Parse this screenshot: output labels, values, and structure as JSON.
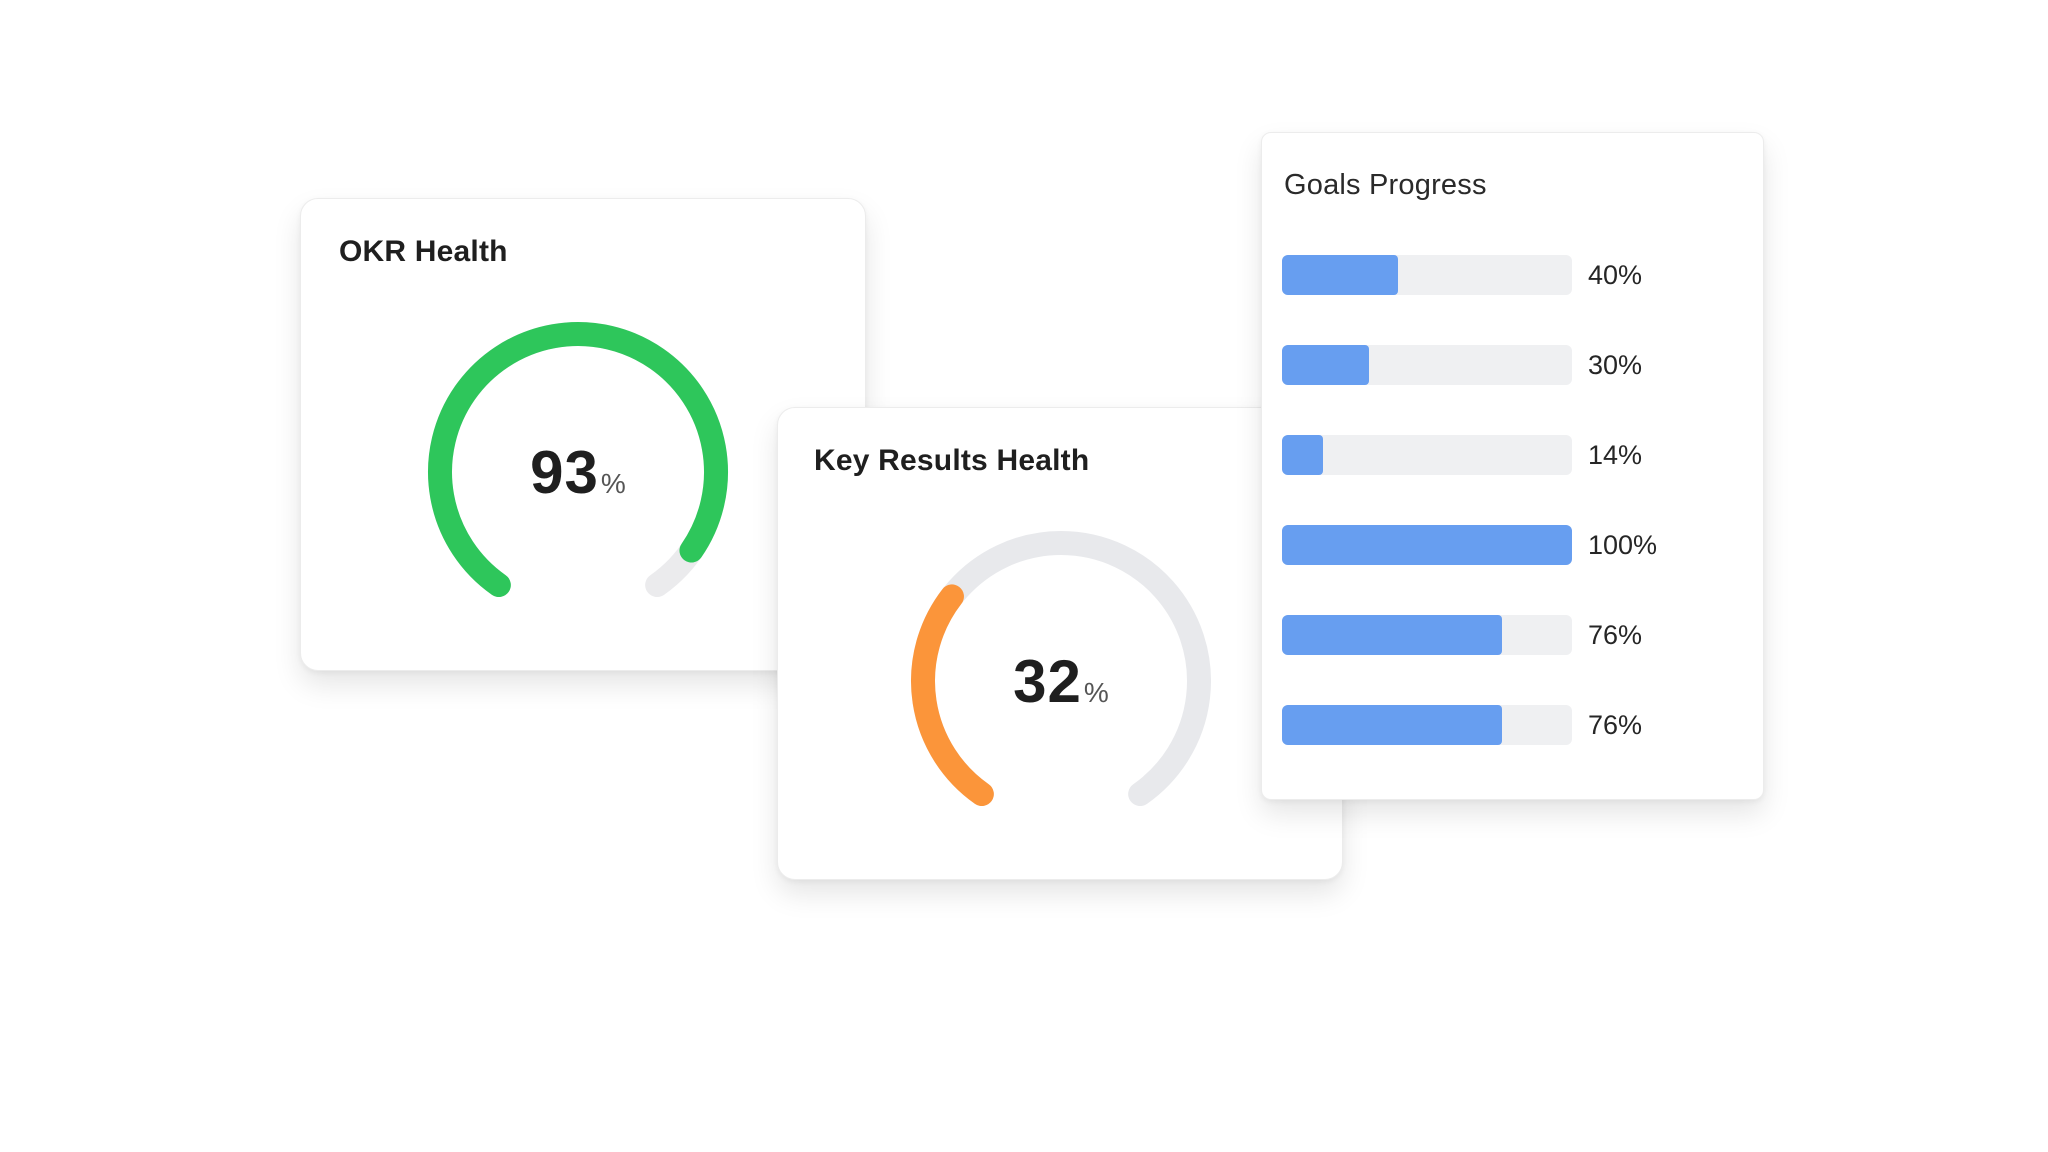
{
  "okr_health": {
    "title": "OKR Health",
    "value": "93",
    "unit": "%",
    "fraction": 0.93,
    "color": "#2ec65b",
    "track_color": "#ebebed"
  },
  "key_results_health": {
    "title": "Key Results Health",
    "value": "32",
    "unit": "%",
    "fraction": 0.32,
    "color": "#fb953a",
    "track_color": "#e8e9ec"
  },
  "goals_progress": {
    "title": "Goals Progress",
    "bar_color": "#679ef0",
    "track_color": "#eff0f2",
    "items": [
      {
        "label": "40%",
        "value": 0.4
      },
      {
        "label": "30%",
        "value": 0.3
      },
      {
        "label": "14%",
        "value": 0.14
      },
      {
        "label": "100%",
        "value": 1.0
      },
      {
        "label": "76%",
        "value": 0.76
      },
      {
        "label": "76%",
        "value": 0.76
      }
    ]
  }
}
